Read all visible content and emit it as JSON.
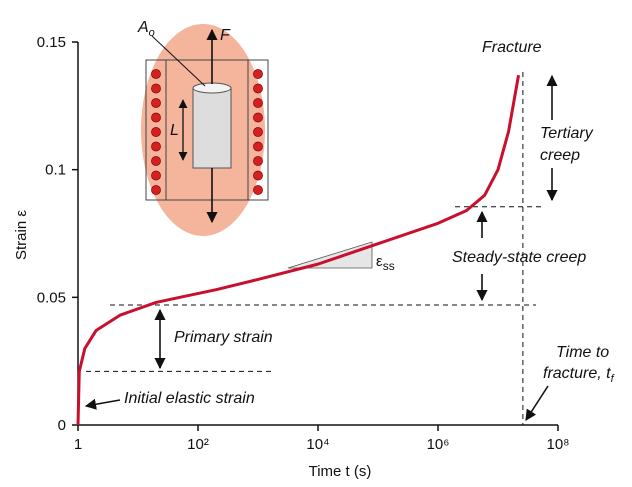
{
  "chart_data": {
    "type": "line",
    "x_label": "Time t (s)",
    "y_label": "Strain ε",
    "xscale": "log",
    "color": "#c8102e",
    "x": [
      1,
      1.05,
      1.3,
      2,
      5,
      20,
      50,
      200,
      1000,
      10000,
      100000,
      1000000,
      3000000,
      6000000,
      10000000,
      15000000,
      22000000
    ],
    "values": [
      0,
      0.021,
      0.03,
      0.037,
      0.043,
      0.048,
      0.05,
      0.053,
      0.057,
      0.063,
      0.071,
      0.079,
      0.084,
      0.09,
      0.1,
      0.115,
      0.137
    ],
    "xlim": [
      1,
      100000000
    ],
    "ylim": [
      0,
      0.15
    ],
    "xticks": [
      1,
      {
        "value": 100,
        "label": "10²"
      },
      {
        "value": 10000,
        "label": "10⁴"
      },
      {
        "value": 1000000,
        "label": "10⁶"
      },
      {
        "value": 100000000,
        "label": "10⁸"
      }
    ],
    "yticks": [
      0,
      0.05,
      0.1,
      0.15
    ],
    "reference_lines": {
      "elastic_strain": 0.021,
      "primary_strain": 0.047,
      "steady_state_strain": 0.0855,
      "fracture_time": 26000000
    },
    "annotations": {
      "fracture": "Fracture",
      "tertiary": [
        "Tertiary",
        "creep"
      ],
      "steady_state": "Steady-state creep",
      "primary": "Primary strain",
      "initial": "Initial elastic strain",
      "time_to_fracture": [
        "Time to",
        "fracture, t"
      ],
      "time_to_fracture_sub": "f",
      "slope": "ε",
      "slope_sub": "ss"
    },
    "illustration_labels": {
      "area": "A",
      "area_sub": "o",
      "force": "F",
      "length": "L"
    }
  }
}
